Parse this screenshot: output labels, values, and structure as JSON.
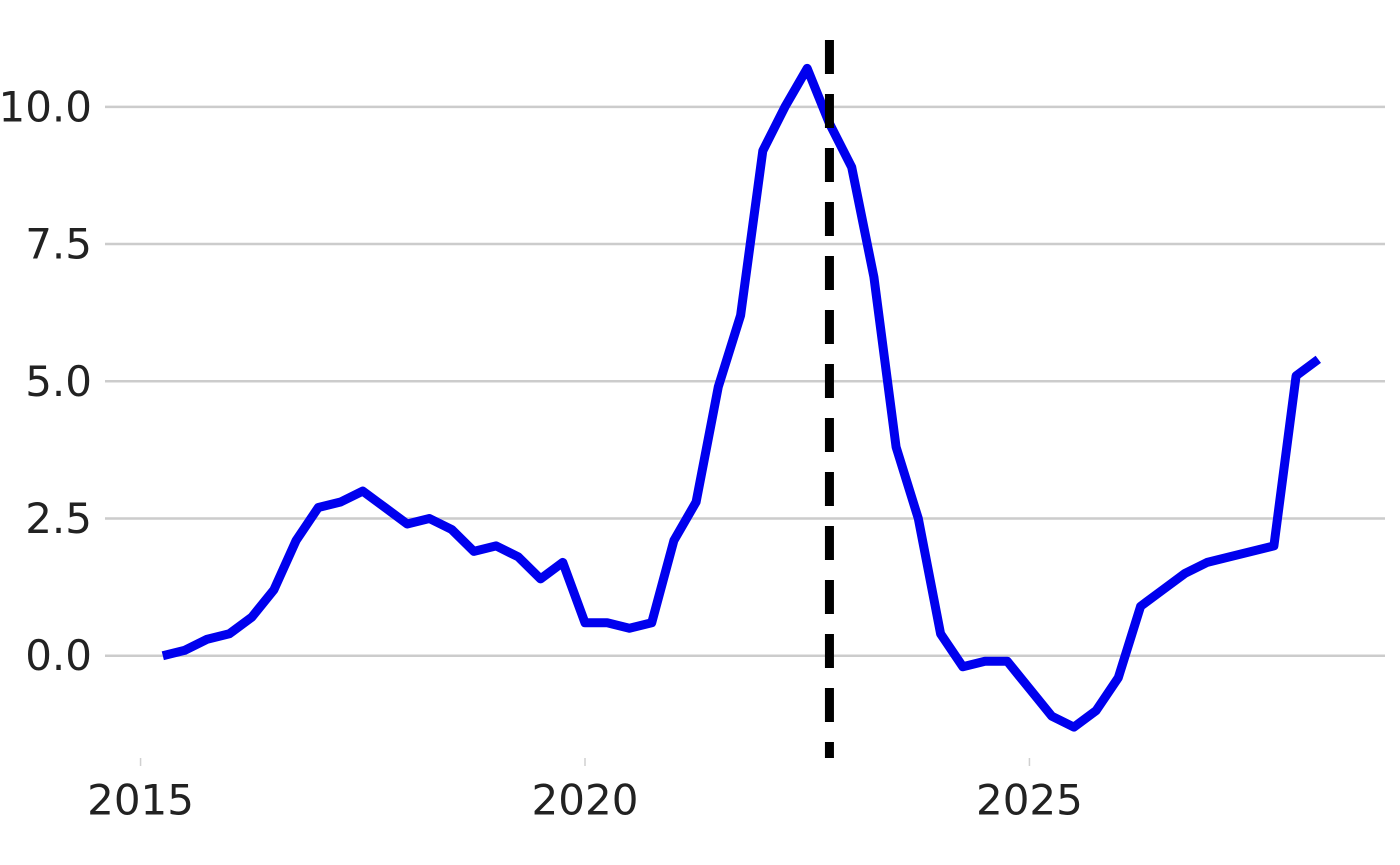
{
  "chart_data": {
    "type": "line",
    "title": "",
    "xlabel": "",
    "ylabel": "",
    "xlim": [
      2014.6,
      2029.0
    ],
    "ylim": [
      -1.9,
      11.4
    ],
    "x_ticks": [
      2015,
      2020,
      2025
    ],
    "x_tick_labels": [
      "2015",
      "2020",
      "2025"
    ],
    "y_ticks": [
      0.0,
      2.5,
      5.0,
      7.5,
      10.0
    ],
    "y_tick_labels": [
      "0.0",
      "2.5",
      "5.0",
      "7.5",
      "10.0"
    ],
    "grid": "horizontal",
    "legend": "none",
    "series": [
      {
        "color": "#0000ee",
        "x": [
          2015.25,
          2015.5,
          2015.75,
          2016.0,
          2016.25,
          2016.5,
          2016.75,
          2017.0,
          2017.25,
          2017.5,
          2017.75,
          2018.0,
          2018.25,
          2018.5,
          2018.75,
          2019.0,
          2019.25,
          2019.5,
          2019.75,
          2020.0,
          2020.25,
          2020.5,
          2020.75,
          2021.0,
          2021.25,
          2021.5,
          2021.75,
          2022.0,
          2022.25,
          2022.5,
          2022.75,
          2023.0,
          2023.25,
          2023.5,
          2023.75,
          2024.0,
          2024.25,
          2024.5,
          2024.75,
          2025.0,
          2025.25,
          2025.5,
          2025.75,
          2026.0,
          2026.25,
          2026.5,
          2026.75,
          2027.0,
          2027.25,
          2027.5,
          2027.75,
          2028.0,
          2028.25
        ],
        "y": [
          0.0,
          0.1,
          0.3,
          0.4,
          0.7,
          1.2,
          2.1,
          2.7,
          2.8,
          3.0,
          2.7,
          2.4,
          2.5,
          2.3,
          1.9,
          2.0,
          1.8,
          1.4,
          1.7,
          0.6,
          0.6,
          0.5,
          0.6,
          2.1,
          2.8,
          4.9,
          6.2,
          9.2,
          10.0,
          10.7,
          9.7,
          8.9,
          6.9,
          3.8,
          2.5,
          0.4,
          -0.2,
          -0.1,
          -0.1,
          -0.6,
          -1.1,
          -1.3,
          -1.0,
          -0.4,
          0.9,
          1.2,
          1.5,
          1.7,
          1.8,
          1.9,
          2.0,
          5.1,
          5.4
        ]
      }
    ],
    "annotations": [
      {
        "type": "vertical-line",
        "x": 2022.75,
        "color": "#000000",
        "style": "dashed"
      }
    ]
  }
}
